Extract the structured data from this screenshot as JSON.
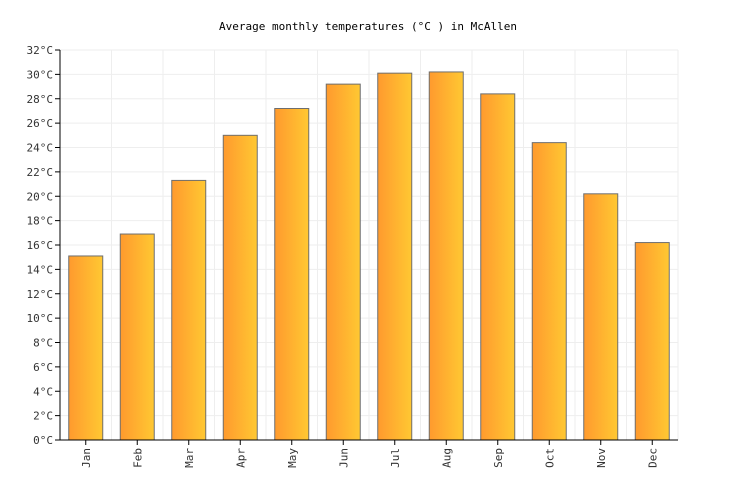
{
  "chart_data": {
    "type": "bar",
    "title": "Average monthly temperatures (°C ) in McAllen",
    "xlabel": "",
    "ylabel": "",
    "categories": [
      "Jan",
      "Feb",
      "Mar",
      "Apr",
      "May",
      "Jun",
      "Jul",
      "Aug",
      "Sep",
      "Oct",
      "Nov",
      "Dec"
    ],
    "values": [
      15.1,
      16.9,
      21.3,
      25.0,
      27.2,
      29.2,
      30.1,
      30.2,
      28.4,
      24.4,
      20.2,
      16.2
    ],
    "ylim": [
      0,
      32
    ],
    "yticks": [
      0,
      2,
      4,
      6,
      8,
      10,
      12,
      14,
      16,
      18,
      20,
      22,
      24,
      26,
      28,
      30,
      32
    ],
    "ytick_suffix": "°C",
    "grid": true,
    "legend": "none",
    "bar_gradient": [
      "#ff9a2e",
      "#ffc832"
    ],
    "bar_stroke": "#6e6e6e",
    "grid_color": "#eeeeee"
  }
}
